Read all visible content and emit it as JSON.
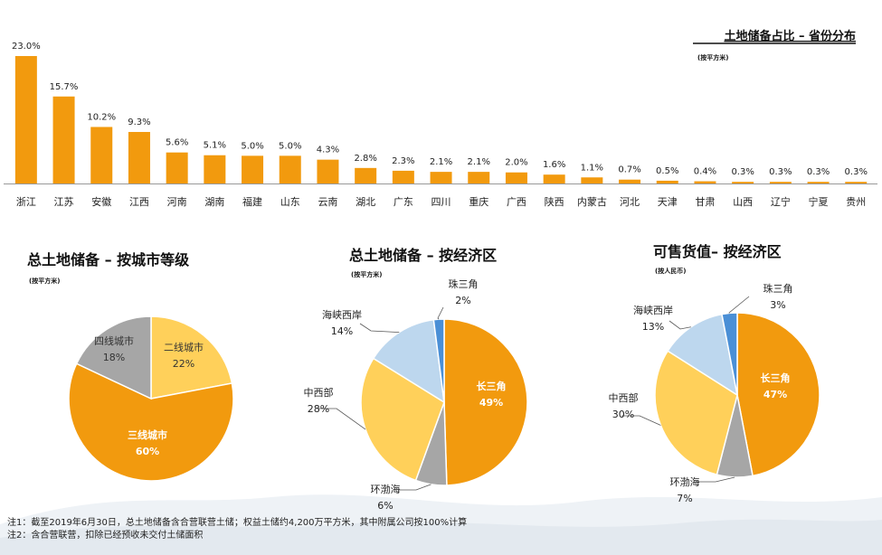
{
  "colors": {
    "orange": "#F29A0E",
    "yellow": "#FFD05A",
    "light_blue": "#BDD7EE",
    "blue": "#4A8FD6",
    "gray": "#A6A6A6",
    "text": "#222222"
  },
  "chart_data": [
    {
      "type": "bar",
      "title": "土地储备占比 – 省份分布",
      "subtitle": "(按平方米)",
      "categories": [
        "浙江",
        "江苏",
        "安徽",
        "江西",
        "河南",
        "湖南",
        "福建",
        "山东",
        "云南",
        "湖北",
        "广东",
        "四川",
        "重庆",
        "广西",
        "陕西",
        "内蒙古",
        "河北",
        "天津",
        "甘肃",
        "山西",
        "辽宁",
        "宁夏",
        "贵州"
      ],
      "values": [
        23.0,
        15.7,
        10.2,
        9.3,
        5.6,
        5.1,
        5.0,
        5.0,
        4.3,
        2.8,
        2.3,
        2.1,
        2.1,
        2.0,
        1.6,
        1.1,
        0.7,
        0.5,
        0.4,
        0.3,
        0.3,
        0.3,
        0.3
      ],
      "value_labels": [
        "23.0%",
        "15.7%",
        "10.2%",
        "9.3%",
        "5.6%",
        "5.1%",
        "5.0%",
        "5.0%",
        "4.3%",
        "2.8%",
        "2.3%",
        "2.1%",
        "2.1%",
        "2.0%",
        "1.6%",
        "1.1%",
        "0.7%",
        "0.5%",
        "0.4%",
        "0.3%",
        "0.3%",
        "0.3%",
        "0.3%"
      ],
      "ylim": [
        0,
        23.0
      ],
      "grid": false
    },
    {
      "type": "pie",
      "title": "总土地储备 – 按城市等级",
      "subtitle": "(按平方米)",
      "slices": [
        {
          "label": "二线城市",
          "value": 22,
          "text": "22%",
          "color": "#FFD05A"
        },
        {
          "label": "三线城市",
          "value": 60,
          "text": "60%",
          "color": "#F29A0E"
        },
        {
          "label": "四线城市",
          "value": 18,
          "text": "18%",
          "color": "#A6A6A6"
        }
      ]
    },
    {
      "type": "pie",
      "title": "总土地储备 – 按经济区",
      "subtitle": "(按平方米)",
      "slices": [
        {
          "label": "长三角",
          "value": 49,
          "text": "49%",
          "color": "#F29A0E"
        },
        {
          "label": "环渤海",
          "value": 6,
          "text": "6%",
          "color": "#A6A6A6"
        },
        {
          "label": "中西部",
          "value": 28,
          "text": "28%",
          "color": "#FFD05A"
        },
        {
          "label": "海峡西岸",
          "value": 14,
          "text": "14%",
          "color": "#BDD7EE"
        },
        {
          "label": "珠三角",
          "value": 2,
          "text": "2%",
          "color": "#4A8FD6"
        }
      ]
    },
    {
      "type": "pie",
      "title": "可售货值– 按经济区",
      "subtitle": "(按人民币)",
      "slices": [
        {
          "label": "长三角",
          "value": 47,
          "text": "47%",
          "color": "#F29A0E"
        },
        {
          "label": "环渤海",
          "value": 7,
          "text": "7%",
          "color": "#A6A6A6"
        },
        {
          "label": "中西部",
          "value": 30,
          "text": "30%",
          "color": "#FFD05A"
        },
        {
          "label": "海峡西岸",
          "value": 13,
          "text": "13%",
          "color": "#BDD7EE"
        },
        {
          "label": "珠三角",
          "value": 3,
          "text": "3%",
          "color": "#4A8FD6"
        }
      ]
    }
  ],
  "notes": [
    "注1：截至2019年6月30日，总土地储备含合营联营土储；权益土储约4,200万平方米，其中附属公司按100%计算",
    "注2：含合营联营，扣除已经预收未交付土储面积"
  ]
}
